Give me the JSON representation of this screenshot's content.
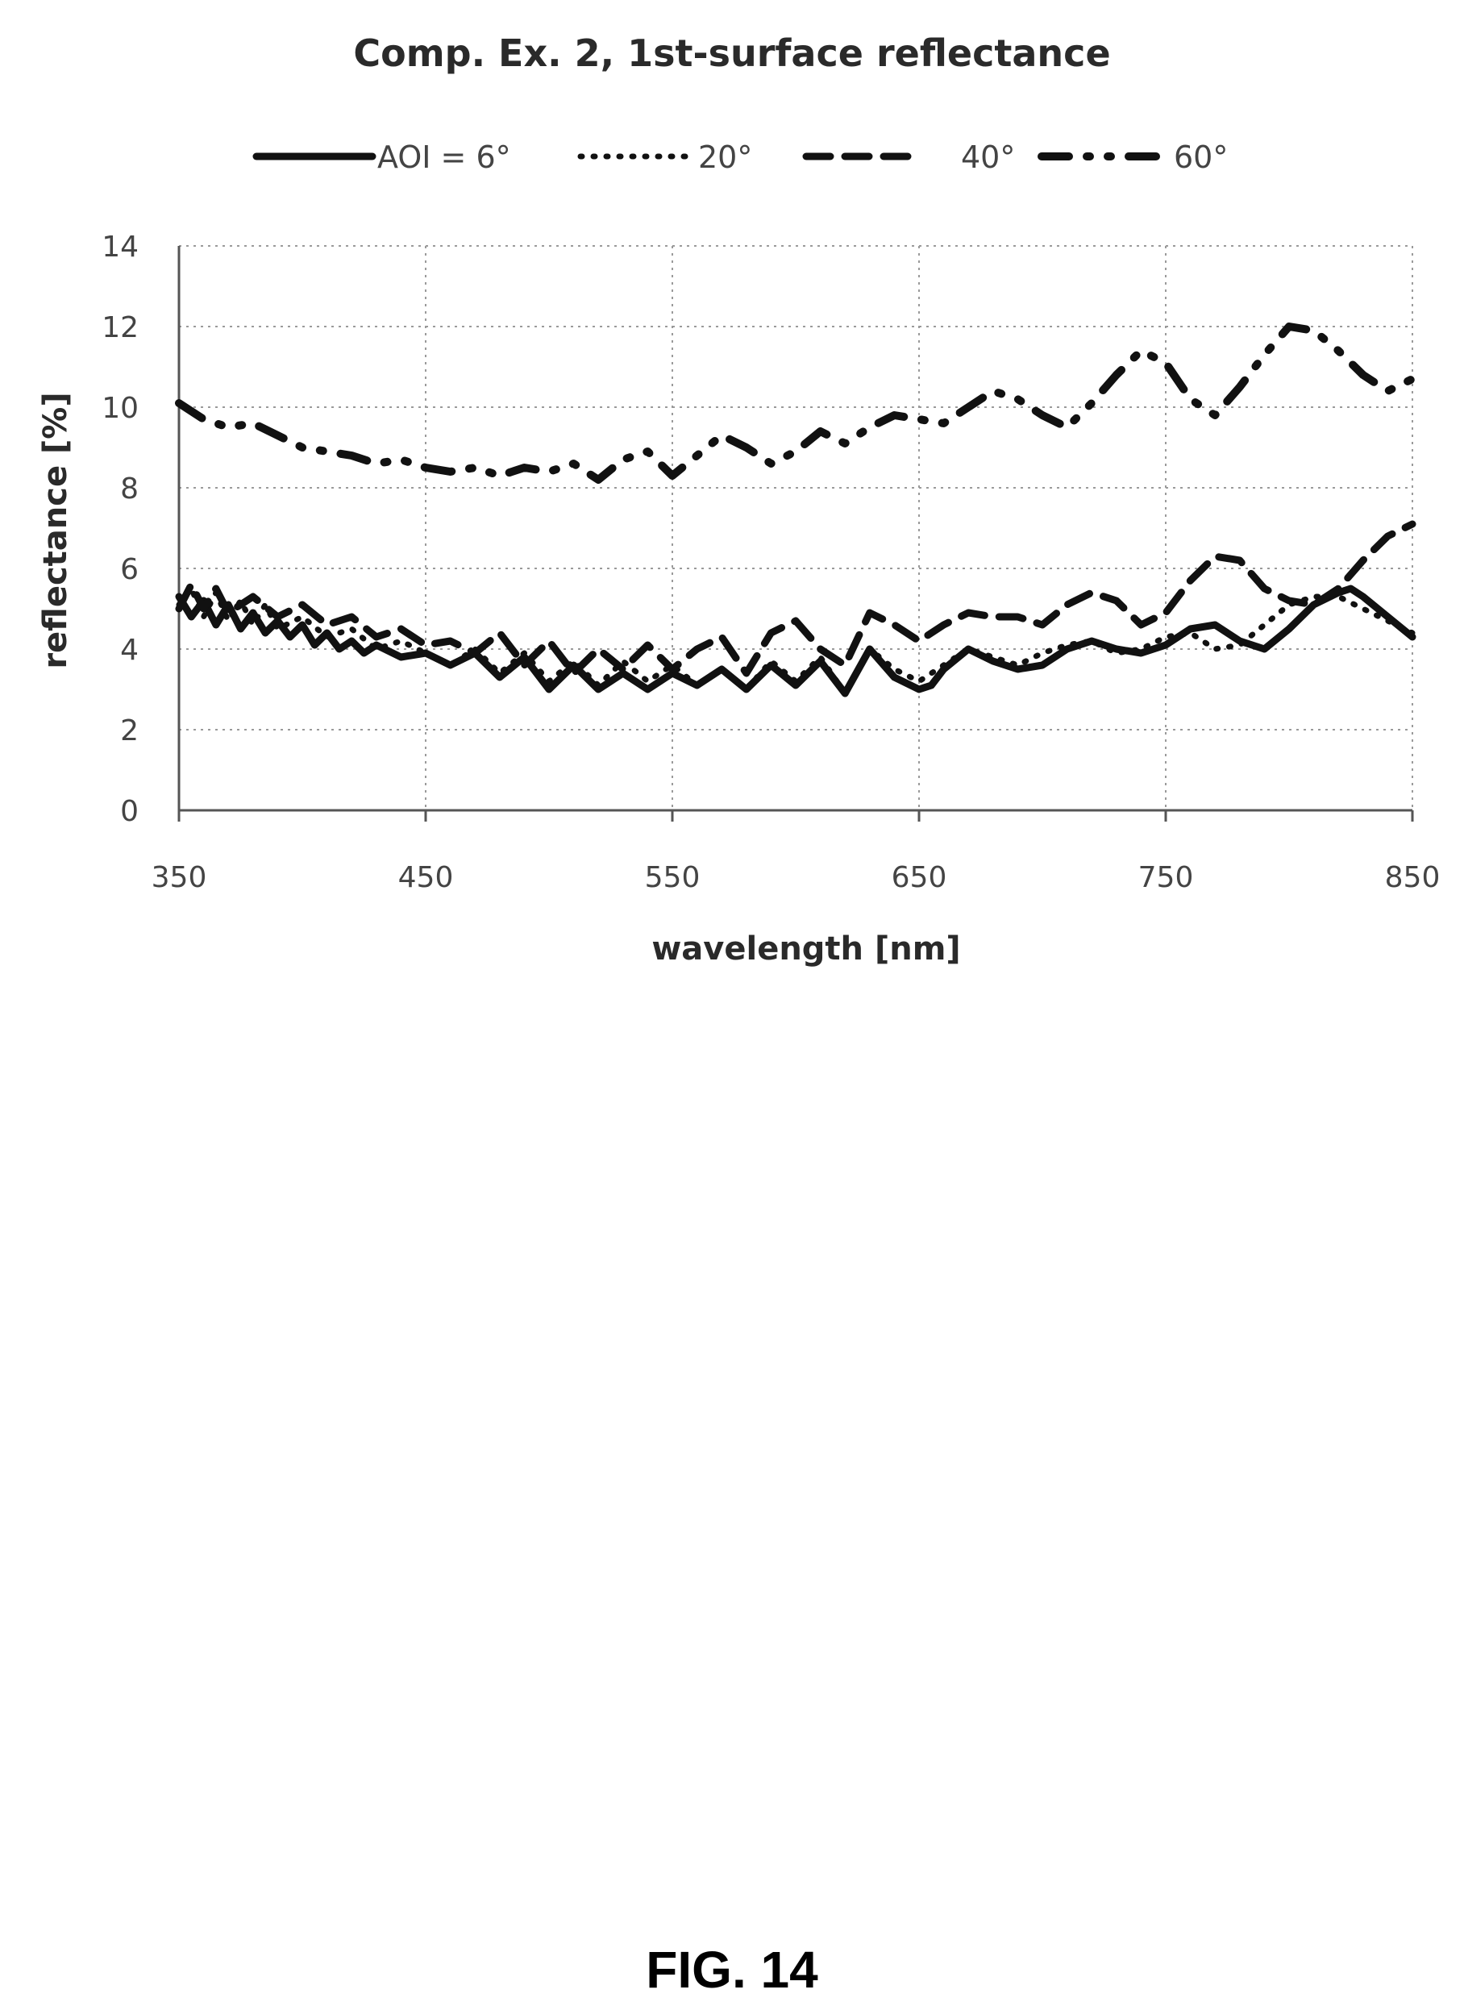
{
  "figure_label": "FIG. 14",
  "chart_data": {
    "type": "line",
    "title": "Comp. Ex. 2, 1st-surface reflectance",
    "xlabel": "wavelength [nm]",
    "ylabel": "reflectance [%]",
    "xlim": [
      350,
      850
    ],
    "ylim": [
      0,
      14
    ],
    "x_ticks": [
      350,
      450,
      550,
      650,
      750,
      850
    ],
    "y_ticks": [
      0,
      2,
      4,
      6,
      8,
      10,
      12,
      14
    ],
    "grid": true,
    "legend_position": "top",
    "series": [
      {
        "name": "AOI = 6°",
        "style": "solid",
        "x": [
          350,
          355,
          360,
          365,
          370,
          375,
          380,
          385,
          390,
          395,
          400,
          405,
          410,
          415,
          420,
          425,
          430,
          440,
          450,
          460,
          470,
          480,
          490,
          500,
          510,
          520,
          530,
          540,
          550,
          560,
          570,
          580,
          590,
          600,
          610,
          620,
          630,
          640,
          650,
          655,
          660,
          670,
          680,
          690,
          700,
          710,
          720,
          730,
          740,
          750,
          760,
          770,
          780,
          790,
          800,
          810,
          820,
          825,
          830,
          840,
          850
        ],
        "y": [
          5.3,
          4.8,
          5.2,
          4.6,
          5.1,
          4.5,
          4.9,
          4.4,
          4.7,
          4.3,
          4.6,
          4.1,
          4.4,
          4.0,
          4.2,
          3.9,
          4.1,
          3.8,
          3.9,
          3.6,
          3.9,
          3.3,
          3.8,
          3.0,
          3.6,
          3.0,
          3.4,
          3.0,
          3.4,
          3.1,
          3.5,
          3.0,
          3.6,
          3.1,
          3.7,
          2.9,
          4.0,
          3.3,
          3.0,
          3.1,
          3.5,
          4.0,
          3.7,
          3.5,
          3.6,
          4.0,
          4.2,
          4.0,
          3.9,
          4.1,
          4.5,
          4.6,
          4.2,
          4.0,
          4.5,
          5.1,
          5.4,
          5.5,
          5.3,
          4.8,
          4.3
        ]
      },
      {
        "name": "20°",
        "style": "dotted",
        "x": [
          350,
          355,
          360,
          365,
          370,
          375,
          380,
          385,
          390,
          400,
          410,
          420,
          430,
          440,
          450,
          460,
          470,
          480,
          490,
          500,
          510,
          520,
          530,
          540,
          550,
          560,
          570,
          580,
          590,
          600,
          610,
          620,
          630,
          640,
          650,
          660,
          670,
          680,
          690,
          700,
          710,
          720,
          730,
          740,
          750,
          760,
          770,
          780,
          790,
          800,
          810,
          820,
          830,
          840,
          850
        ],
        "y": [
          5.1,
          5.5,
          4.8,
          5.4,
          4.7,
          5.2,
          4.6,
          5.1,
          4.5,
          4.8,
          4.3,
          4.5,
          4.0,
          4.2,
          3.9,
          3.6,
          4.0,
          3.4,
          3.9,
          3.2,
          3.7,
          3.1,
          3.7,
          3.2,
          3.6,
          3.1,
          3.5,
          3.0,
          3.7,
          3.2,
          3.8,
          2.9,
          4.0,
          3.5,
          3.2,
          3.6,
          4.0,
          3.8,
          3.6,
          3.9,
          4.1,
          4.2,
          3.9,
          4.0,
          4.3,
          4.4,
          4.0,
          4.1,
          4.6,
          5.1,
          5.3,
          5.3,
          5.0,
          4.7,
          4.4
        ]
      },
      {
        "name": "40°",
        "style": "dashed",
        "x": [
          350,
          355,
          360,
          365,
          370,
          380,
          390,
          400,
          410,
          420,
          430,
          440,
          450,
          460,
          470,
          480,
          490,
          500,
          510,
          520,
          530,
          540,
          550,
          560,
          570,
          580,
          590,
          600,
          610,
          620,
          630,
          640,
          650,
          660,
          670,
          680,
          690,
          700,
          710,
          720,
          730,
          740,
          750,
          760,
          770,
          780,
          790,
          800,
          810,
          820,
          830,
          840,
          850
        ],
        "y": [
          5.0,
          5.6,
          5.0,
          5.5,
          4.9,
          5.3,
          4.8,
          5.1,
          4.6,
          4.8,
          4.3,
          4.5,
          4.1,
          4.2,
          3.9,
          4.4,
          3.6,
          4.2,
          3.4,
          4.0,
          3.5,
          4.1,
          3.5,
          4.0,
          4.3,
          3.4,
          4.4,
          4.7,
          4.0,
          3.6,
          4.9,
          4.6,
          4.2,
          4.6,
          4.9,
          4.8,
          4.8,
          4.6,
          5.1,
          5.4,
          5.2,
          4.6,
          4.9,
          5.7,
          6.3,
          6.2,
          5.5,
          5.2,
          5.1,
          5.5,
          6.2,
          6.8,
          7.1
        ]
      },
      {
        "name": "60°",
        "style": "dashdot",
        "x": [
          350,
          360,
          370,
          380,
          390,
          400,
          410,
          420,
          430,
          440,
          450,
          460,
          470,
          480,
          490,
          500,
          510,
          520,
          530,
          540,
          550,
          560,
          570,
          580,
          590,
          600,
          610,
          620,
          630,
          640,
          650,
          660,
          670,
          680,
          690,
          700,
          710,
          720,
          730,
          740,
          750,
          760,
          770,
          780,
          790,
          800,
          810,
          820,
          830,
          840,
          850
        ],
        "y": [
          10.1,
          9.7,
          9.5,
          9.6,
          9.3,
          9.0,
          8.9,
          8.8,
          8.6,
          8.7,
          8.5,
          8.4,
          8.5,
          8.3,
          8.5,
          8.4,
          8.6,
          8.2,
          8.7,
          8.9,
          8.3,
          8.8,
          9.3,
          9.0,
          8.6,
          8.9,
          9.4,
          9.1,
          9.5,
          9.8,
          9.7,
          9.6,
          10.0,
          10.4,
          10.2,
          9.8,
          9.5,
          10.1,
          10.8,
          11.4,
          11.1,
          10.2,
          9.8,
          10.5,
          11.3,
          12.0,
          11.9,
          11.4,
          10.8,
          10.4,
          10.7
        ]
      }
    ]
  }
}
